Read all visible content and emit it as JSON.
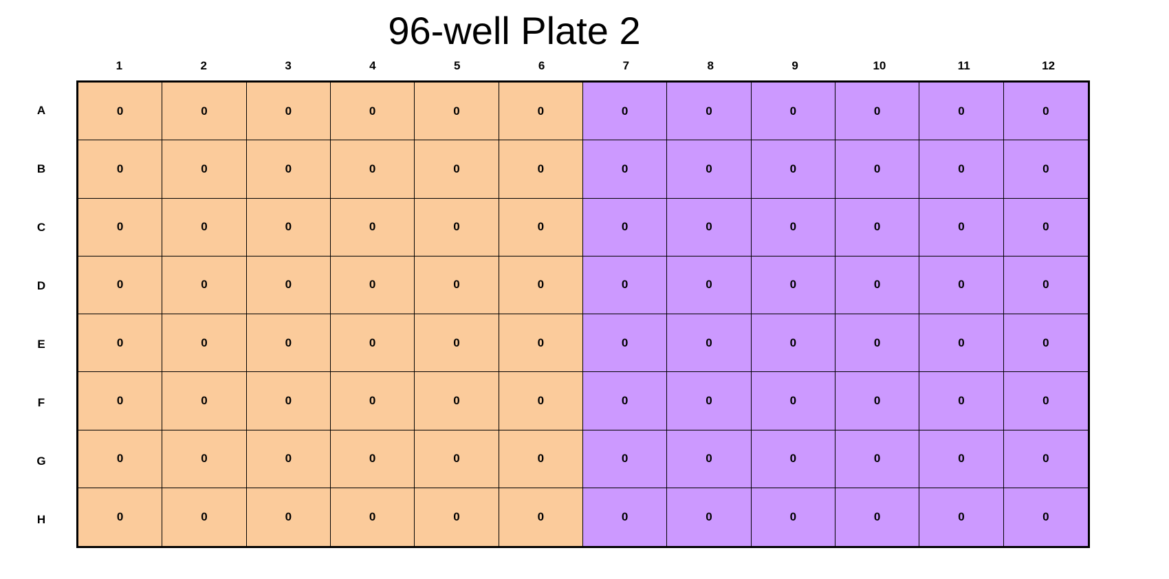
{
  "title": "96-well Plate 2",
  "columns": [
    "1",
    "2",
    "3",
    "4",
    "5",
    "6",
    "7",
    "8",
    "9",
    "10",
    "11",
    "12"
  ],
  "rows": [
    "A",
    "B",
    "C",
    "D",
    "E",
    "F",
    "G",
    "H"
  ],
  "groups": [
    {
      "columns": [
        "1",
        "2",
        "3",
        "4",
        "5",
        "6"
      ],
      "color": "#FBCB9B"
    },
    {
      "columns": [
        "7",
        "8",
        "9",
        "10",
        "11",
        "12"
      ],
      "color": "#CC99FF"
    }
  ],
  "wells": [
    [
      "0",
      "0",
      "0",
      "0",
      "0",
      "0",
      "0",
      "0",
      "0",
      "0",
      "0",
      "0"
    ],
    [
      "0",
      "0",
      "0",
      "0",
      "0",
      "0",
      "0",
      "0",
      "0",
      "0",
      "0",
      "0"
    ],
    [
      "0",
      "0",
      "0",
      "0",
      "0",
      "0",
      "0",
      "0",
      "0",
      "0",
      "0",
      "0"
    ],
    [
      "0",
      "0",
      "0",
      "0",
      "0",
      "0",
      "0",
      "0",
      "0",
      "0",
      "0",
      "0"
    ],
    [
      "0",
      "0",
      "0",
      "0",
      "0",
      "0",
      "0",
      "0",
      "0",
      "0",
      "0",
      "0"
    ],
    [
      "0",
      "0",
      "0",
      "0",
      "0",
      "0",
      "0",
      "0",
      "0",
      "0",
      "0",
      "0"
    ],
    [
      "0",
      "0",
      "0",
      "0",
      "0",
      "0",
      "0",
      "0",
      "0",
      "0",
      "0",
      "0"
    ],
    [
      "0",
      "0",
      "0",
      "0",
      "0",
      "0",
      "0",
      "0",
      "0",
      "0",
      "0",
      "0"
    ]
  ]
}
